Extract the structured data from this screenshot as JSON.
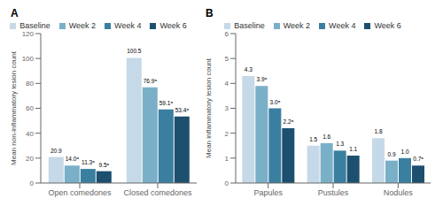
{
  "chart_data": [
    {
      "type": "bar",
      "title": "A",
      "categories": [
        "Open comedones",
        "Closed comedones"
      ],
      "series": [
        {
          "name": "Baseline",
          "color": "#c5d9e8",
          "values": [
            20.9,
            100.5
          ],
          "value_labels": [
            "20.9",
            "100.5"
          ]
        },
        {
          "name": "Week 2",
          "color": "#7aafc8",
          "values": [
            14.0,
            76.9
          ],
          "value_labels": [
            "14.0ᵃ",
            "76.9ᵃ"
          ]
        },
        {
          "name": "Week 4",
          "color": "#3a7fa0",
          "values": [
            11.3,
            59.1
          ],
          "value_labels": [
            "11.3ᵃ",
            "59.1ᵃ"
          ]
        },
        {
          "name": "Week 6",
          "color": "#1d4f6e",
          "values": [
            9.5,
            53.4
          ],
          "value_labels": [
            "9.5ᵃ",
            "53.4ᵃ"
          ]
        }
      ],
      "ylabel": "Mean non-inflammatory lesion count",
      "ylim": [
        0,
        120
      ],
      "yticks": [
        0,
        20,
        40,
        60,
        80,
        100,
        120
      ],
      "data_labels": true,
      "legend": "top"
    },
    {
      "type": "bar",
      "title": "B",
      "categories": [
        "Papules",
        "Pustules",
        "Nodules"
      ],
      "series": [
        {
          "name": "Baseline",
          "color": "#c5d9e8",
          "values": [
            4.3,
            1.5,
            1.8
          ],
          "value_labels": [
            "4.3",
            "1.5",
            "1.8"
          ]
        },
        {
          "name": "Week 2",
          "color": "#7aafc8",
          "values": [
            3.9,
            1.6,
            0.9
          ],
          "value_labels": [
            "3.9ᵃ",
            "1.6",
            "0.9"
          ]
        },
        {
          "name": "Week 4",
          "color": "#3a7fa0",
          "values": [
            3.0,
            1.3,
            1.0
          ],
          "value_labels": [
            "3.0ᵃ",
            "1.3",
            "1.0"
          ]
        },
        {
          "name": "Week 6",
          "color": "#1d4f6e",
          "values": [
            2.2,
            1.1,
            0.7
          ],
          "value_labels": [
            "2.2ᵃ",
            "1.1",
            "0.7ᵃ"
          ]
        }
      ],
      "ylabel": "Mean inflammatory lesion count",
      "ylim": [
        0,
        6
      ],
      "yticks": [
        0,
        1,
        2,
        3,
        4,
        5,
        6
      ],
      "data_labels": true,
      "legend": "top"
    }
  ]
}
